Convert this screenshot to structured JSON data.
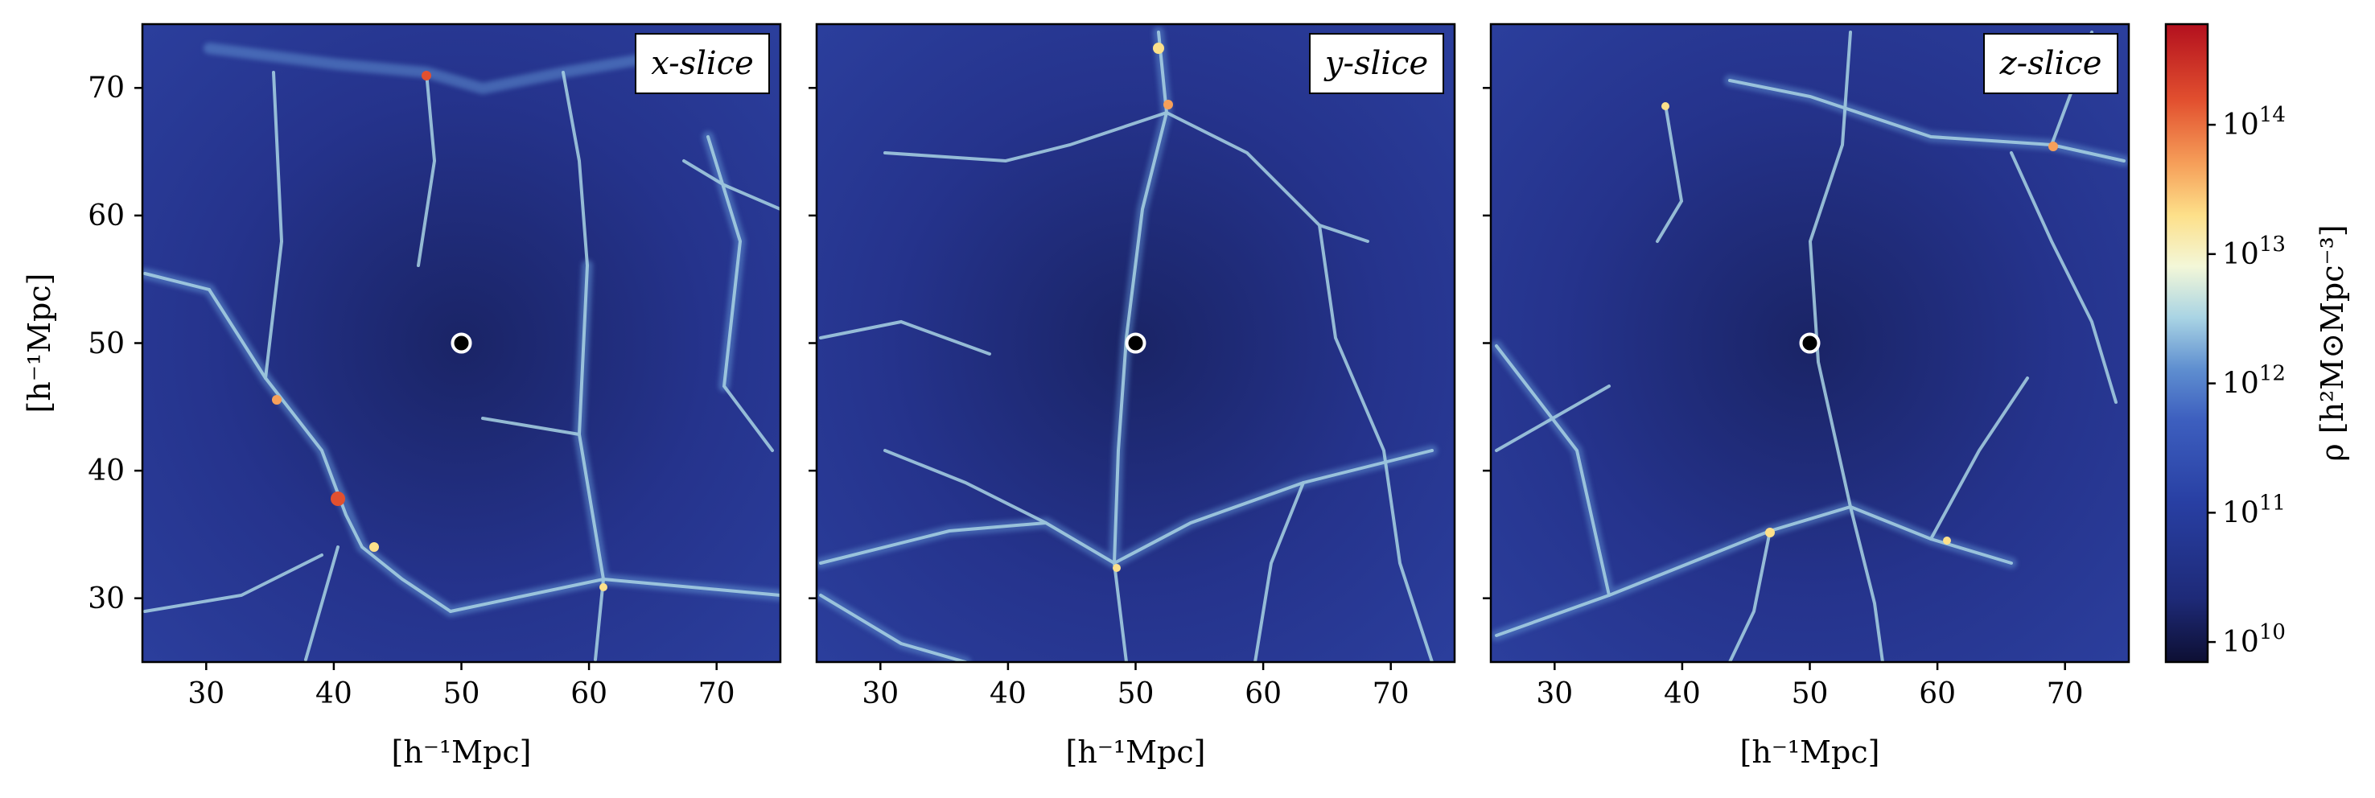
{
  "chart_data": {
    "type": "heatmap",
    "panels": [
      {
        "label": "x-slice",
        "xlabel": "[h⁻¹Mpc]",
        "ylabel": "[h⁻¹Mpc]",
        "xlim": [
          25,
          75
        ],
        "ylim": [
          25,
          75
        ],
        "marker": {
          "x": 50,
          "y": 50
        }
      },
      {
        "label": "y-slice",
        "xlabel": "[h⁻¹Mpc]",
        "ylabel": "",
        "xlim": [
          25,
          75
        ],
        "ylim": [
          25,
          75
        ],
        "marker": {
          "x": 50,
          "y": 50
        }
      },
      {
        "label": "z-slice",
        "xlabel": "[h⁻¹Mpc]",
        "ylabel": "",
        "xlim": [
          25,
          75
        ],
        "ylim": [
          25,
          75
        ],
        "marker": {
          "x": 50,
          "y": 50
        }
      }
    ],
    "x_ticks": [
      30,
      40,
      50,
      60,
      70
    ],
    "y_ticks": [
      30,
      40,
      50,
      60,
      70
    ],
    "colorbar": {
      "label": "ρ  [h²M⊙Mpc⁻³]",
      "scale": "log",
      "range": [
        7000000000.0,
        600000000000000.0
      ],
      "ticks": [
        {
          "value": 10000000000.0,
          "base": "10",
          "exp": "10"
        },
        {
          "value": 100000000000.0,
          "base": "10",
          "exp": "11"
        },
        {
          "value": 1000000000000.0,
          "base": "10",
          "exp": "12"
        },
        {
          "value": 10000000000000.0,
          "base": "10",
          "exp": "13"
        },
        {
          "value": 100000000000000.0,
          "base": "10",
          "exp": "14"
        }
      ],
      "colormap": [
        "#0d0f33",
        "#1e2a78",
        "#283fa3",
        "#3d5fbf",
        "#5f8fd0",
        "#a9d4e4",
        "#f3f7d8",
        "#fde08a",
        "#f6a05a",
        "#e2502f",
        "#b3101e"
      ]
    },
    "grid": false
  }
}
